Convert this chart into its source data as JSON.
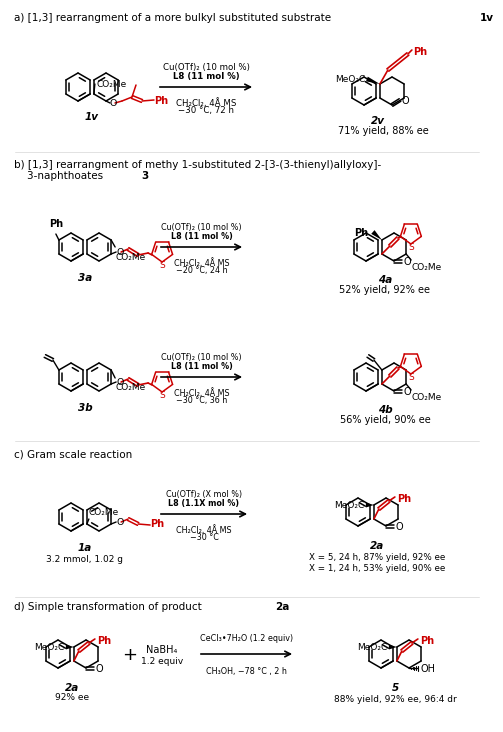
{
  "bg": "#ffffff",
  "black": "#000000",
  "red": "#cc0000",
  "a_header": "a) [1,3] rearrangment of a more bulkyl substituted substrate ",
  "a_header_bold": "1v",
  "a_r1": "Cu(OTf)₂ (10 mol %)",
  "a_r2": "L8 (11 mol %)",
  "a_r3": "CH₂Cl₂, 4Å MS",
  "a_r4": "−30 °C, 72 h",
  "a_yield": "71% yield, 88% ee",
  "b_header1": "b) [1,3] rearrangment of methy 1-substituted 2-[3-(3-thienyl)allyloxy]-",
  "b_header2": "    3-naphthoates ",
  "b_header2_bold": "3",
  "b1_r1": "Cu(OTf)₂ (10 mol %)",
  "b1_r2": "L8 (11 mol %)",
  "b1_r3": "CH₂Cl₂, 4Å MS",
  "b1_r4": "−20 °C, 24 h",
  "b1_yield": "52% yield, 92% ee",
  "b2_r1": "Cu(OTf)₂ (10 mol %)",
  "b2_r2": "L8 (11 mol %)",
  "b2_r3": "CH₂Cl₂, 4Å MS",
  "b2_r4": "−30 °C, 36 h",
  "b2_yield": "56% yield, 90% ee",
  "c_header": "c) Gram scale reaction",
  "c_r1": "Cu(OTf)₂ (X mol %)",
  "c_r2": "L8 (1.1X mol %)",
  "c_r3": "CH₂Cl₂, 4Å MS",
  "c_r4": "−30 °C",
  "c_info": "3.2 mmol, 1.02 g",
  "c_yield1": "X = 5, 24 h, 87% yield, 92% ee",
  "c_yield2": "X = 1, 24 h, 53% yield, 90% ee",
  "d_header": "d) Simple transformation of product ",
  "d_header_bold": "2a",
  "d_nabh4_1": "NaBH₄",
  "d_nabh4_2": "1.2 equiv",
  "d_r1": "CeCl₃•7H₂O (1.2 equiv)",
  "d_r2": "CH₃OH, −78 °C , 2 h",
  "d_substrate_ee": "92% ee",
  "d_yield": "88% yield, 92% ee, 96:4 dr"
}
